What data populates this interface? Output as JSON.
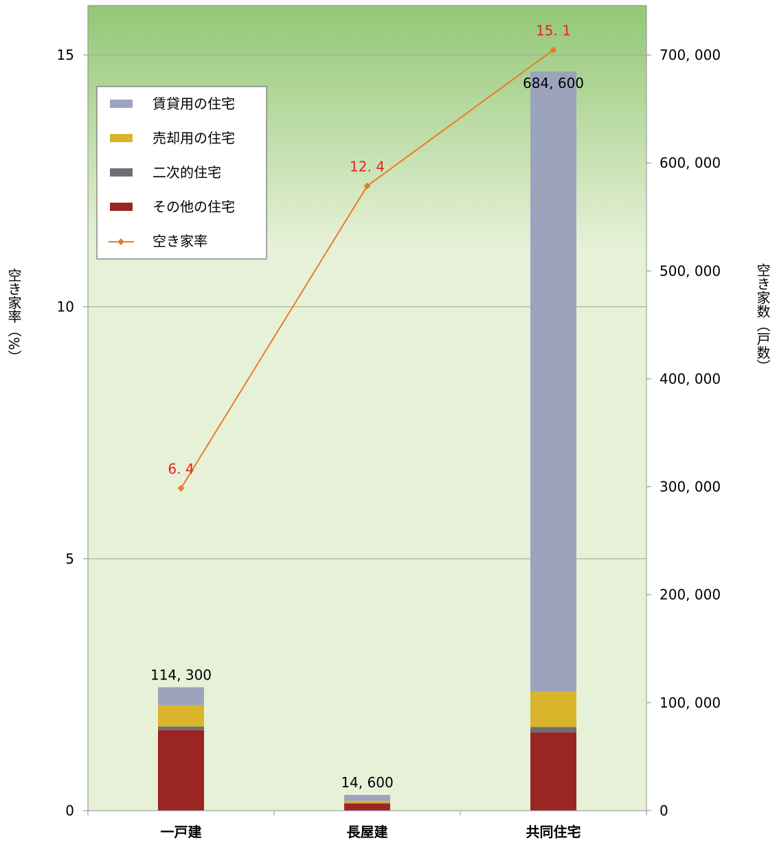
{
  "chart_data": {
    "type": "bar",
    "stacked": true,
    "categories": [
      "一戸建",
      "長屋建",
      "共同住宅"
    ],
    "series": [
      {
        "name": "その他の住宅",
        "values": [
          74600,
          6500,
          72500
        ],
        "color": "#9B2523"
      },
      {
        "name": "二次的住宅",
        "values": [
          3300,
          700,
          5000
        ],
        "color": "#6C6F73"
      },
      {
        "name": "売却用の住宅",
        "values": [
          19600,
          1900,
          32700
        ],
        "color": "#DAB42B"
      },
      {
        "name": "賃貸用の住宅",
        "values": [
          16800,
          5500,
          574400
        ],
        "color": "#9CA3BD"
      }
    ],
    "totals": [
      "114, 300",
      "14, 600",
      "684, 600"
    ],
    "total_values": [
      114300,
      14600,
      684600
    ],
    "line_series": {
      "name": "空き家率",
      "values": [
        6.4,
        12.4,
        15.1
      ],
      "labels": [
        "6. 4",
        "12. 4",
        "15. 1"
      ],
      "color": "#EC7A22",
      "label_color": "#E8211E",
      "axis": "left"
    },
    "y_left": {
      "label": "空き家率（%）",
      "ylim": [
        0,
        15
      ],
      "ticks": [
        "0",
        "5",
        "10",
        "15"
      ]
    },
    "y_right": {
      "label": "空き家数（戸数）",
      "ylim": [
        0,
        700000
      ],
      "ticks": [
        "0",
        "100, 000",
        "200, 000",
        "300, 000",
        "400, 000",
        "500, 000",
        "600, 000",
        "700, 000"
      ]
    },
    "legend": {
      "position": "top-left",
      "entries": [
        {
          "label": "賃貸用の住宅",
          "color": "#9CA3BD",
          "kind": "bar"
        },
        {
          "label": "売却用の住宅",
          "color": "#DAB42B",
          "kind": "bar"
        },
        {
          "label": "二次的住宅",
          "color": "#6C6F73",
          "kind": "bar"
        },
        {
          "label": "その他の住宅",
          "color": "#9B2523",
          "kind": "bar"
        },
        {
          "label": "空き家率",
          "color": "#EC7A22",
          "kind": "line"
        }
      ]
    },
    "grid": true,
    "background": {
      "top": "#93C775",
      "bottom": "#E6F1D7"
    }
  }
}
